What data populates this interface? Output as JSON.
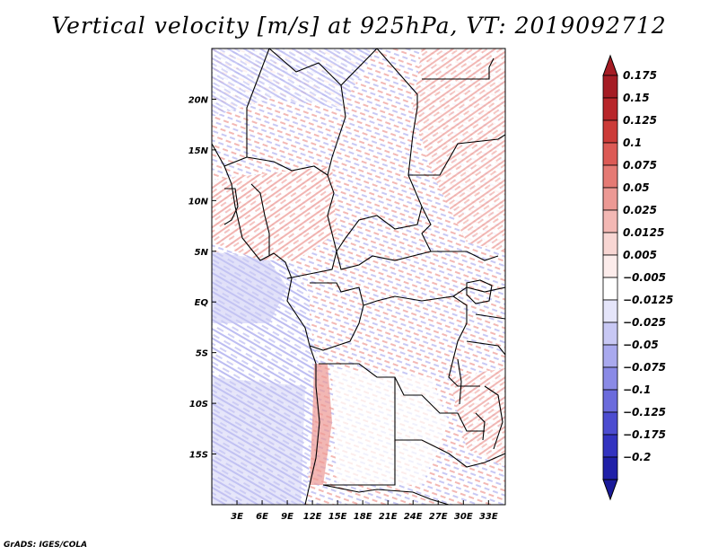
{
  "title": "Vertical velocity [m/s] at 925hPa, VT: 2019092712",
  "credit": "GrADS: IGES/COLA",
  "map": {
    "lon_range": [
      0,
      35
    ],
    "lat_range": [
      -20,
      25
    ],
    "lon_ticks": [
      {
        "value": 3,
        "label": "3E"
      },
      {
        "value": 6,
        "label": "6E"
      },
      {
        "value": 9,
        "label": "9E"
      },
      {
        "value": 12,
        "label": "12E"
      },
      {
        "value": 15,
        "label": "15E"
      },
      {
        "value": 18,
        "label": "18E"
      },
      {
        "value": 21,
        "label": "21E"
      },
      {
        "value": 24,
        "label": "24E"
      },
      {
        "value": 27,
        "label": "27E"
      },
      {
        "value": 30,
        "label": "30E"
      },
      {
        "value": 33,
        "label": "33E"
      }
    ],
    "lat_ticks": [
      {
        "value": 20,
        "label": "20N"
      },
      {
        "value": 15,
        "label": "15N"
      },
      {
        "value": 10,
        "label": "10N"
      },
      {
        "value": 5,
        "label": "5N"
      },
      {
        "value": 0,
        "label": "EQ"
      },
      {
        "value": -5,
        "label": "5S"
      },
      {
        "value": -10,
        "label": "10S"
      },
      {
        "value": -15,
        "label": "15S"
      }
    ]
  },
  "colorbar": {
    "levels": [
      {
        "label": "0.175",
        "color": "#a51c24"
      },
      {
        "label": "0.15",
        "color": "#b8262a"
      },
      {
        "label": "0.125",
        "color": "#cc3b38"
      },
      {
        "label": "0.1",
        "color": "#dc5a55"
      },
      {
        "label": "0.075",
        "color": "#e57a74"
      },
      {
        "label": "0.05",
        "color": "#ec9994"
      },
      {
        "label": "0.025",
        "color": "#f3b8b4"
      },
      {
        "label": "0.0125",
        "color": "#f8d6d3"
      },
      {
        "label": "0.005",
        "color": "#fceceb"
      },
      {
        "label": "−0.005",
        "color": "#ffffff"
      },
      {
        "label": "−0.0125",
        "color": "#e5e5fa"
      },
      {
        "label": "−0.025",
        "color": "#c8c8f4"
      },
      {
        "label": "−0.05",
        "color": "#a9a9ee"
      },
      {
        "label": "−0.075",
        "color": "#8a8ae6"
      },
      {
        "label": "−0.1",
        "color": "#6b6bdc"
      },
      {
        "label": "−0.125",
        "color": "#4c4cd0"
      },
      {
        "label": "−0.175",
        "color": "#3333c0"
      },
      {
        "label": "−0.2",
        "color": "#2020a8"
      }
    ],
    "top_color": "#a51c24",
    "bottom_color": "#1a1a99"
  }
}
